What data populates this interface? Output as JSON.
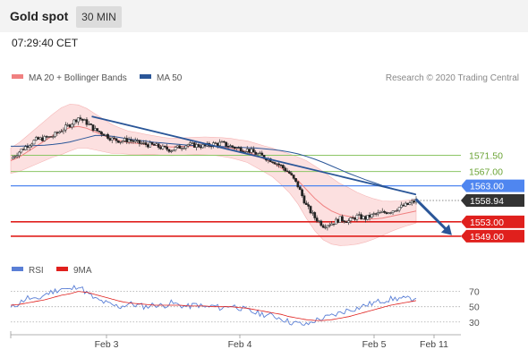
{
  "header": {
    "instrument": "Gold spot",
    "timeframe": "30 MIN",
    "time": "07:29:40 CET"
  },
  "legend_main": {
    "items": [
      {
        "label": "MA 20 + Bollinger Bands",
        "color": "#f08080"
      },
      {
        "label": "MA 50",
        "color": "#2a5698"
      }
    ],
    "credit": "Research © 2020 Trading Central"
  },
  "legend_rsi": {
    "items": [
      {
        "label": "RSI",
        "color": "#5a7fd6"
      },
      {
        "label": "9MA",
        "color": "#e0201d"
      }
    ]
  },
  "chart_data": [
    {
      "type": "candlestick",
      "title": "",
      "ylim": [
        1545.5,
        1585.8
      ],
      "x_ticks": [
        "Feb 3",
        "Feb 4",
        "Feb 5",
        "Feb 11"
      ],
      "levels": [
        {
          "value": 1571.5,
          "label": "1571.50",
          "color": "#8cc665"
        },
        {
          "value": 1567.0,
          "label": "1567.00",
          "color": "#8cc665"
        },
        {
          "value": 1563.0,
          "label": "1563.00",
          "color": "#4f86f0"
        },
        {
          "value": 1553.0,
          "label": "1553.00",
          "color": "#e0201d"
        },
        {
          "value": 1549.0,
          "label": "1549.00",
          "color": "#e0201d"
        }
      ],
      "last_price": {
        "value": 1558.94,
        "label": "1558.94"
      },
      "trendline": {
        "from": {
          "x": 0.18,
          "y": 1582.3
        },
        "to": {
          "x": 0.9,
          "y": 1560.6
        }
      },
      "forecast_arrow": {
        "from": {
          "x": 0.9,
          "y": 1559.3
        },
        "to": {
          "x": 0.98,
          "y": 1549.3
        }
      },
      "close_path": [
        1570.5,
        1572.5,
        1574.3,
        1575.8,
        1576.2,
        1576.8,
        1578.5,
        1580.0,
        1582.0,
        1580.5,
        1578.5,
        1577.5,
        1576.0,
        1575.5,
        1575.8,
        1575.0,
        1574.5,
        1574.2,
        1573.5,
        1573.0,
        1573.8,
        1574.5,
        1574.2,
        1574.0,
        1574.6,
        1574.8,
        1574.0,
        1573.4,
        1573.0,
        1572.0,
        1571.0,
        1570.0,
        1568.5,
        1566.5,
        1563.0,
        1557.5,
        1554.2,
        1552.0,
        1552.6,
        1553.8,
        1553.2,
        1554.5,
        1554.0,
        1555.0,
        1555.5,
        1556.0,
        1557.0,
        1557.8,
        1558.94
      ],
      "ma20_path": [
        1570.0,
        1571.0,
        1572.5,
        1574.0,
        1575.5,
        1577.0,
        1578.2,
        1579.2,
        1579.5,
        1579.0,
        1578.0,
        1577.0,
        1576.0,
        1575.5,
        1575.0,
        1574.8,
        1574.5,
        1574.3,
        1574.0,
        1573.8,
        1573.9,
        1574.0,
        1574.1,
        1574.1,
        1574.0,
        1573.8,
        1573.5,
        1573.0,
        1572.5,
        1571.5,
        1570.5,
        1569.5,
        1568.0,
        1566.5,
        1564.5,
        1562.0,
        1559.5,
        1557.5,
        1556.0,
        1555.0,
        1554.5,
        1554.0,
        1553.8,
        1553.8,
        1554.0,
        1554.5,
        1555.0,
        1555.5,
        1556.0
      ],
      "ma50_path": [
        1574.0,
        1574.0,
        1574.1,
        1574.2,
        1574.3,
        1574.5,
        1574.8,
        1575.2,
        1575.8,
        1576.4,
        1577.0,
        1577.0,
        1576.8,
        1576.4,
        1576.0,
        1575.7,
        1575.4,
        1575.1,
        1574.9,
        1574.7,
        1574.5,
        1574.3,
        1574.2,
        1574.1,
        1574.0,
        1573.9,
        1573.8,
        1573.7,
        1573.6,
        1573.5,
        1573.3,
        1573.1,
        1572.8,
        1572.4,
        1571.9,
        1571.2,
        1570.4,
        1569.5,
        1568.5,
        1567.5,
        1566.5,
        1565.6,
        1564.7,
        1563.9,
        1563.1,
        1562.4,
        1561.7,
        1561.1,
        1560.5
      ],
      "band_width_path": [
        3.5,
        4.0,
        4.5,
        5.0,
        5.5,
        6.0,
        6.5,
        6.5,
        6.0,
        5.5,
        5.0,
        4.5,
        4.0,
        3.5,
        3.2,
        3.0,
        2.8,
        2.6,
        2.5,
        2.4,
        2.4,
        2.4,
        2.4,
        2.5,
        2.5,
        2.6,
        2.7,
        2.8,
        3.0,
        3.3,
        3.6,
        4.0,
        4.6,
        5.4,
        6.5,
        8.0,
        9.0,
        9.5,
        9.2,
        8.6,
        8.0,
        7.2,
        6.4,
        5.6,
        4.8,
        4.2,
        3.8,
        3.5,
        3.3
      ]
    },
    {
      "type": "line",
      "title": "",
      "ylim": [
        18,
        86
      ],
      "y_ticks": [
        30,
        50,
        70
      ],
      "series": [
        {
          "name": "RSI",
          "color": "#5a7fd6",
          "values": [
            48,
            55,
            62,
            58,
            66,
            70,
            74,
            72,
            78,
            68,
            60,
            56,
            52,
            50,
            54,
            52,
            50,
            53,
            51,
            55,
            52,
            50,
            53,
            49,
            51,
            48,
            52,
            49,
            45,
            42,
            40,
            38,
            35,
            30,
            28,
            26,
            32,
            35,
            38,
            42,
            46,
            48,
            52,
            55,
            58,
            60,
            61,
            60,
            61
          ]
        },
        {
          "name": "9MA",
          "color": "#e0201d",
          "values": [
            52,
            53,
            55,
            57,
            59,
            62,
            65,
            67,
            70,
            69,
            66,
            63,
            60,
            57,
            55,
            54,
            53,
            52,
            52,
            52,
            52,
            51,
            51,
            51,
            50,
            50,
            50,
            49,
            48,
            46,
            44,
            42,
            40,
            37,
            35,
            33,
            32,
            32,
            33,
            35,
            37,
            40,
            43,
            46,
            49,
            52,
            54,
            56,
            58
          ]
        }
      ]
    }
  ]
}
